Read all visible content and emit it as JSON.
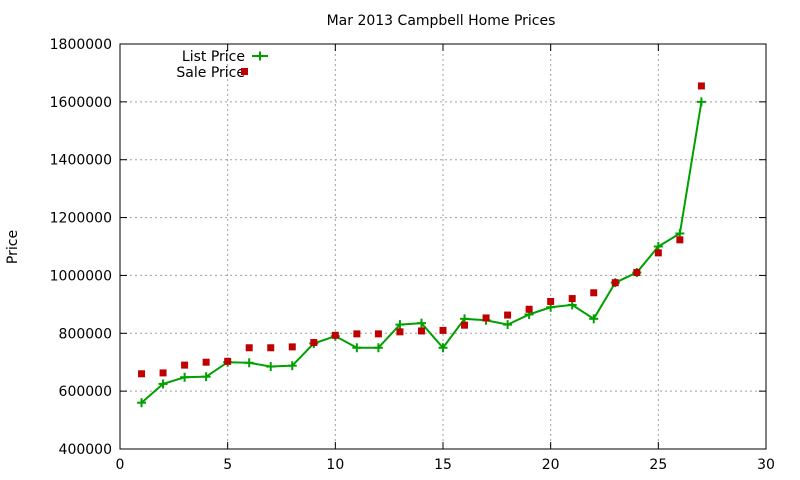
{
  "chart_data": {
    "type": "line",
    "title": "Mar 2013 Campbell Home Prices",
    "xlabel": "",
    "ylabel": "Price",
    "xlim": [
      0,
      30
    ],
    "ylim": [
      400000,
      1800000
    ],
    "x_ticks": [
      0,
      5,
      10,
      15,
      20,
      25,
      30
    ],
    "y_ticks": [
      400000,
      600000,
      800000,
      1000000,
      1200000,
      1400000,
      1600000,
      1800000
    ],
    "grid": true,
    "legend_position": "top-left",
    "series": [
      {
        "name": "List Price",
        "kind": "line-with-plus-markers",
        "color": "#00a000",
        "x": [
          1,
          2,
          3,
          4,
          5,
          6,
          7,
          8,
          9,
          10,
          11,
          12,
          13,
          14,
          15,
          16,
          17,
          18,
          19,
          20,
          21,
          22,
          23,
          24,
          25,
          26,
          27
        ],
        "y": [
          560000,
          625000,
          648000,
          650000,
          700000,
          698000,
          685000,
          688000,
          765000,
          790000,
          750000,
          750000,
          830000,
          835000,
          750000,
          850000,
          845000,
          830000,
          865000,
          890000,
          898000,
          850000,
          975000,
          1010000,
          1100000,
          1145000,
          1600000
        ]
      },
      {
        "name": "Sale Price",
        "kind": "square-points",
        "color": "#c00000",
        "x": [
          1,
          2,
          3,
          4,
          5,
          6,
          7,
          8,
          9,
          10,
          11,
          12,
          13,
          14,
          15,
          16,
          17,
          18,
          19,
          20,
          21,
          22,
          23,
          24,
          25,
          26,
          27
        ],
        "y": [
          660000,
          663000,
          690000,
          700000,
          703000,
          750000,
          750000,
          753000,
          768000,
          793000,
          798000,
          798000,
          805000,
          808000,
          810000,
          828000,
          853000,
          863000,
          883000,
          910000,
          920000,
          940000,
          975000,
          1010000,
          1078000,
          1123000,
          1655000
        ]
      }
    ]
  }
}
